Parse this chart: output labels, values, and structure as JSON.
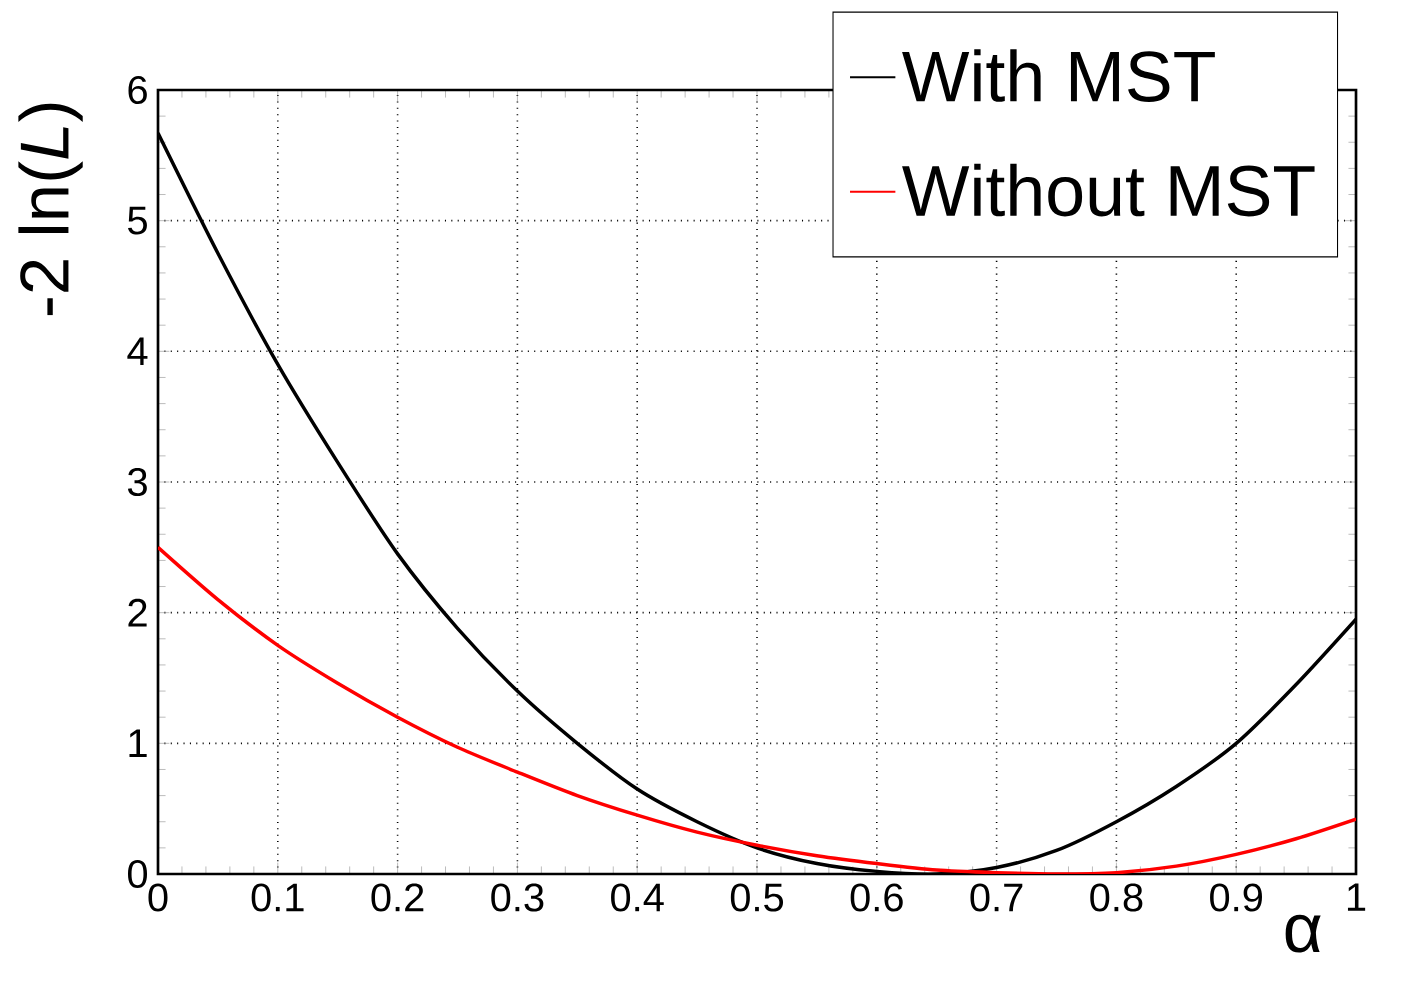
{
  "chart_data": {
    "type": "line",
    "xlabel": "α",
    "ylabel": "-2 ln(*L*)",
    "x": [
      0,
      0.05,
      0.1,
      0.15,
      0.2,
      0.25,
      0.3,
      0.35,
      0.4,
      0.45,
      0.5,
      0.55,
      0.6,
      0.65,
      0.7,
      0.75,
      0.8,
      0.85,
      0.9,
      0.95,
      1
    ],
    "series": [
      {
        "name": "With MST",
        "color": "#000000",
        "values": [
          5.67,
          4.75,
          3.9,
          3.15,
          2.45,
          1.88,
          1.4,
          1.0,
          0.65,
          0.4,
          0.2,
          0.08,
          0.02,
          0.0,
          0.05,
          0.18,
          0.4,
          0.67,
          1.0,
          1.45,
          1.95
        ]
      },
      {
        "name": "Without MST",
        "color": "#ff0000",
        "values": [
          2.5,
          2.1,
          1.75,
          1.46,
          1.2,
          0.97,
          0.78,
          0.6,
          0.45,
          0.32,
          0.22,
          0.14,
          0.08,
          0.03,
          0.01,
          0.0,
          0.01,
          0.06,
          0.15,
          0.27,
          0.42
        ]
      }
    ],
    "xlim": [
      0,
      1
    ],
    "ylim": [
      0,
      6
    ],
    "xticks": [
      0,
      0.1,
      0.2,
      0.3,
      0.4,
      0.5,
      0.6,
      0.7,
      0.8,
      0.9,
      1
    ],
    "yticks": [
      0,
      1,
      2,
      3,
      4,
      5,
      6
    ],
    "grid": true,
    "legend": "top right",
    "line_style": "solid",
    "marker": "none"
  }
}
